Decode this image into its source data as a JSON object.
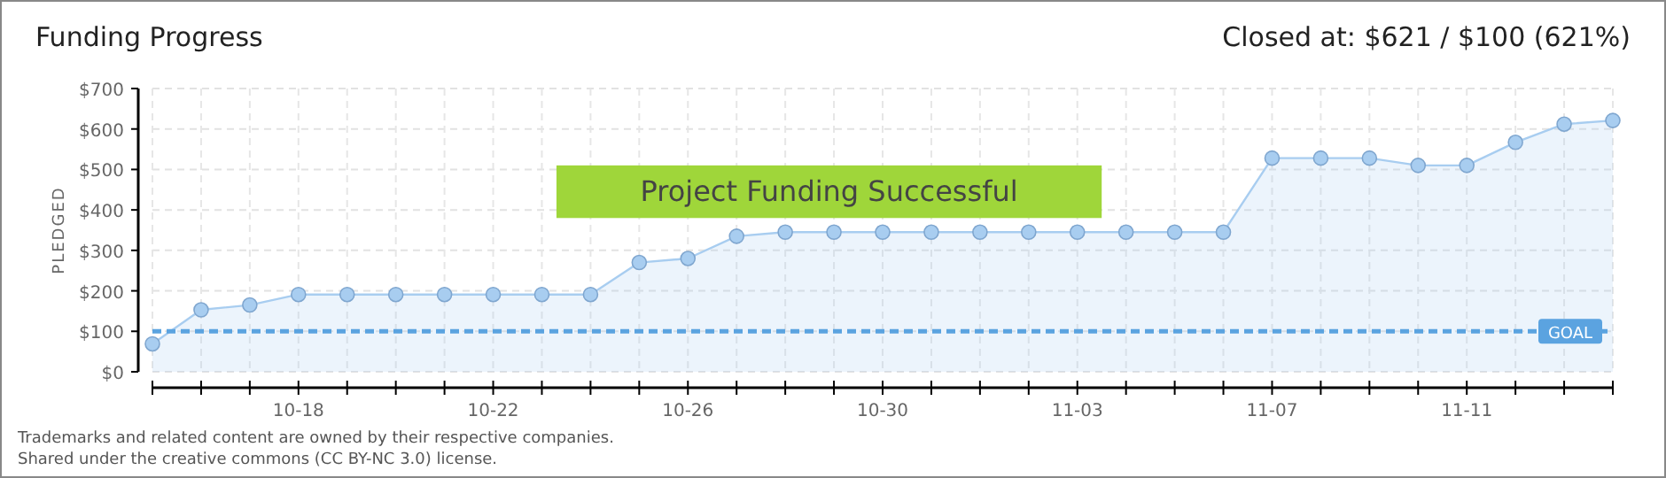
{
  "chart_data": {
    "type": "area",
    "title": "Funding Progress",
    "subtitle": "Closed at: $621 / $100 (621%)",
    "ylabel": "PLEDGED",
    "categories": [
      null,
      null,
      null,
      "10-18",
      null,
      null,
      null,
      "10-22",
      null,
      null,
      null,
      "10-26",
      null,
      null,
      null,
      "10-30",
      null,
      null,
      null,
      "11-03",
      null,
      null,
      null,
      "11-07",
      null,
      null,
      null,
      "11-11",
      null,
      null,
      null
    ],
    "series": [
      {
        "color": "#a8cdf0",
        "values": [
          69,
          153,
          165,
          191,
          191,
          191,
          191,
          191,
          191,
          191,
          270,
          280,
          335,
          345,
          345,
          345,
          345,
          345,
          345,
          345,
          345,
          345,
          345,
          528,
          528,
          528,
          510,
          510,
          567,
          612,
          621
        ]
      }
    ],
    "ylim": [
      0,
      700
    ],
    "yticks": [
      {
        "value": 0,
        "label": "$0"
      },
      {
        "value": 100,
        "label": "$100"
      },
      {
        "value": 200,
        "label": "$200"
      },
      {
        "value": 300,
        "label": "$300"
      },
      {
        "value": 400,
        "label": "$400"
      },
      {
        "value": 500,
        "label": "$500"
      },
      {
        "value": 600,
        "label": "$600"
      },
      {
        "value": 700,
        "label": "$700"
      }
    ],
    "grid": true,
    "marker": "circle",
    "ref_lines": [
      {
        "axis": "y",
        "value": 100,
        "label": "GOAL",
        "color": "#5ba3e0",
        "line_style": "dashed"
      }
    ],
    "annotations": [
      "Project Funding Successful",
      "Trademarks and related content are owned by their respective companies.",
      "Shared under the creative commons (CC BY-NC 3.0) license."
    ]
  }
}
